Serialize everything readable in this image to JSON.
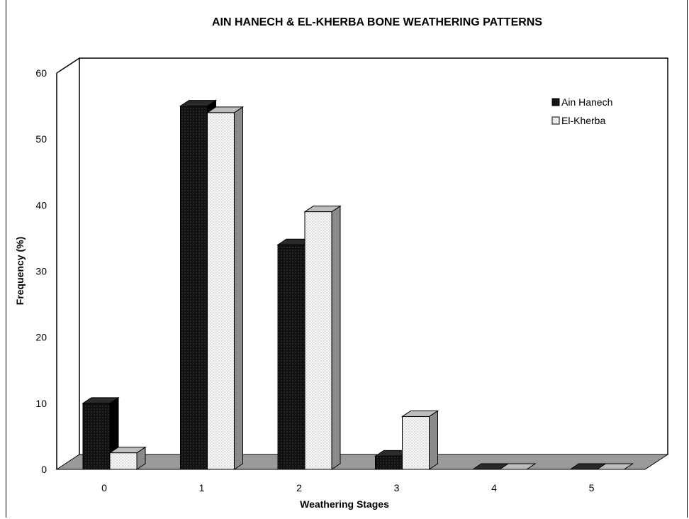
{
  "chart_data": {
    "type": "bar",
    "title": "AIN HANECH & EL-KHERBA BONE WEATHERING PATTERNS",
    "xlabel": "Weathering Stages",
    "ylabel": "Frequency (%)",
    "categories": [
      "0",
      "1",
      "2",
      "3",
      "4",
      "5"
    ],
    "ylim": [
      0,
      60
    ],
    "yticks": [
      "0",
      "10",
      "20",
      "30",
      "40",
      "50",
      "60"
    ],
    "series": [
      {
        "name": "Ain Hanech",
        "values": [
          10,
          55,
          34,
          2,
          0,
          0
        ],
        "color": "#111111"
      },
      {
        "name": "El-Kherba",
        "values": [
          2.5,
          54,
          39,
          8,
          0,
          0
        ],
        "color": "#f4f4f4"
      }
    ],
    "legend_position": "top-right",
    "grid": false
  }
}
